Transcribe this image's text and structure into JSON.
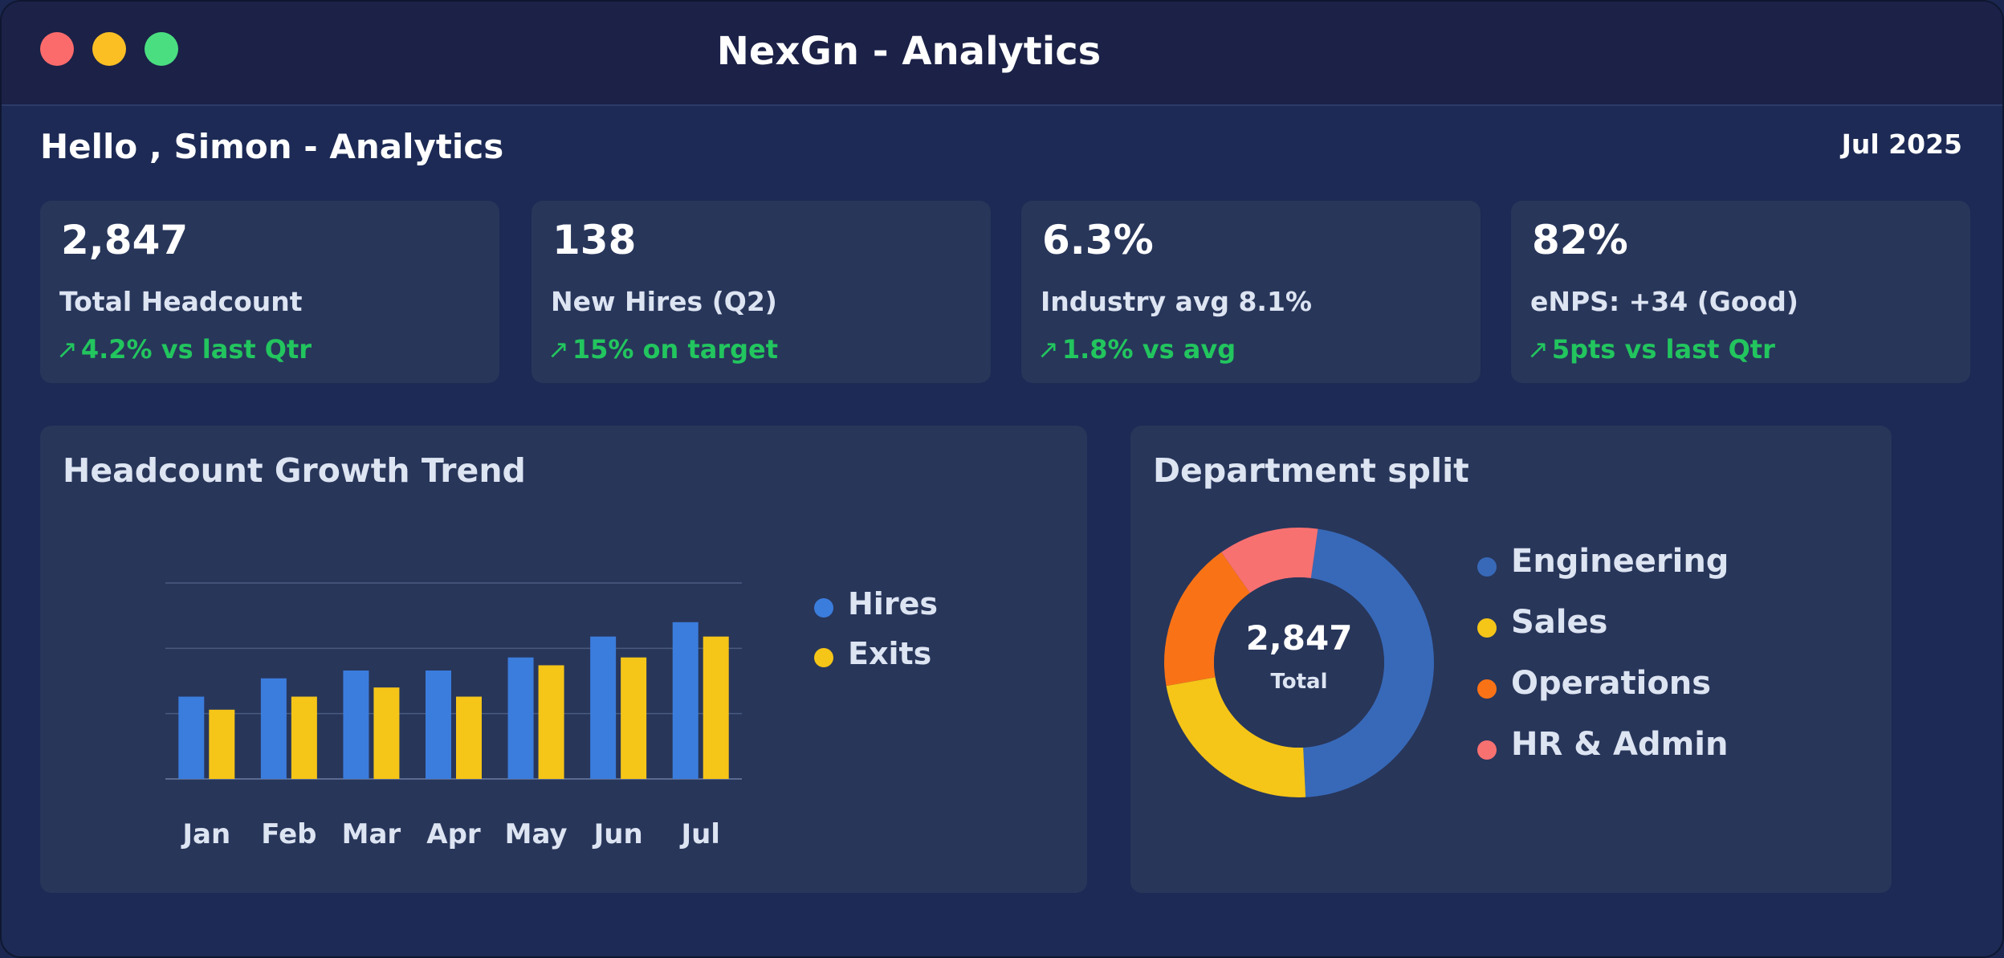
{
  "window": {
    "title": "NexGn - Analytics"
  },
  "header": {
    "greeting": "Hello , Simon - Analytics",
    "date": "Jul 2025"
  },
  "kpis": [
    {
      "value": "2,847",
      "label": "Total Headcount",
      "arrow": "↗",
      "delta": "4.2% vs last Qtr"
    },
    {
      "value": "138",
      "label": "New Hires (Q2)",
      "arrow": "↗",
      "delta": "15% on target"
    },
    {
      "value": "6.3%",
      "label": "Industry avg 8.1%",
      "arrow": "↗",
      "delta": "1.8% vs avg"
    },
    {
      "value": "82%",
      "label": "eNPS: +34 (Good)",
      "arrow": "↗",
      "delta": "5pts vs last Qtr"
    }
  ],
  "colors": {
    "positive": "#22c55e",
    "hires": "#3b7ddd",
    "exits": "#f5c518",
    "engineering": "#3869b8",
    "sales": "#f5c518",
    "operations": "#f97316",
    "hr_admin": "#f87171"
  },
  "growth_panel": {
    "title": "Headcount Growth Trend"
  },
  "department_panel": {
    "title": "Department split",
    "center_value": "2,847",
    "center_label": "Total"
  },
  "chart_data": [
    {
      "type": "bar",
      "title": "Headcount Growth Trend",
      "categories": [
        "Jan",
        "Feb",
        "Mar",
        "Apr",
        "May",
        "Jun",
        "Jul"
      ],
      "series": [
        {
          "name": "Hires",
          "color": "#3b7ddd",
          "values": [
            63,
            77,
            83,
            83,
            93,
            109,
            120
          ]
        },
        {
          "name": "Exits",
          "color": "#f5c518",
          "values": [
            53,
            63,
            70,
            63,
            87,
            93,
            109
          ]
        }
      ],
      "ylim": [
        0,
        150
      ],
      "grid": true,
      "legend": "right"
    },
    {
      "type": "pie",
      "title": "Department split",
      "labels": [
        "Engineering",
        "Sales",
        "Operations",
        "HR & Admin"
      ],
      "values": [
        47,
        23,
        18,
        12
      ],
      "colors": [
        "#3869b8",
        "#f5c518",
        "#f97316",
        "#f87171"
      ],
      "legend": "right"
    }
  ]
}
